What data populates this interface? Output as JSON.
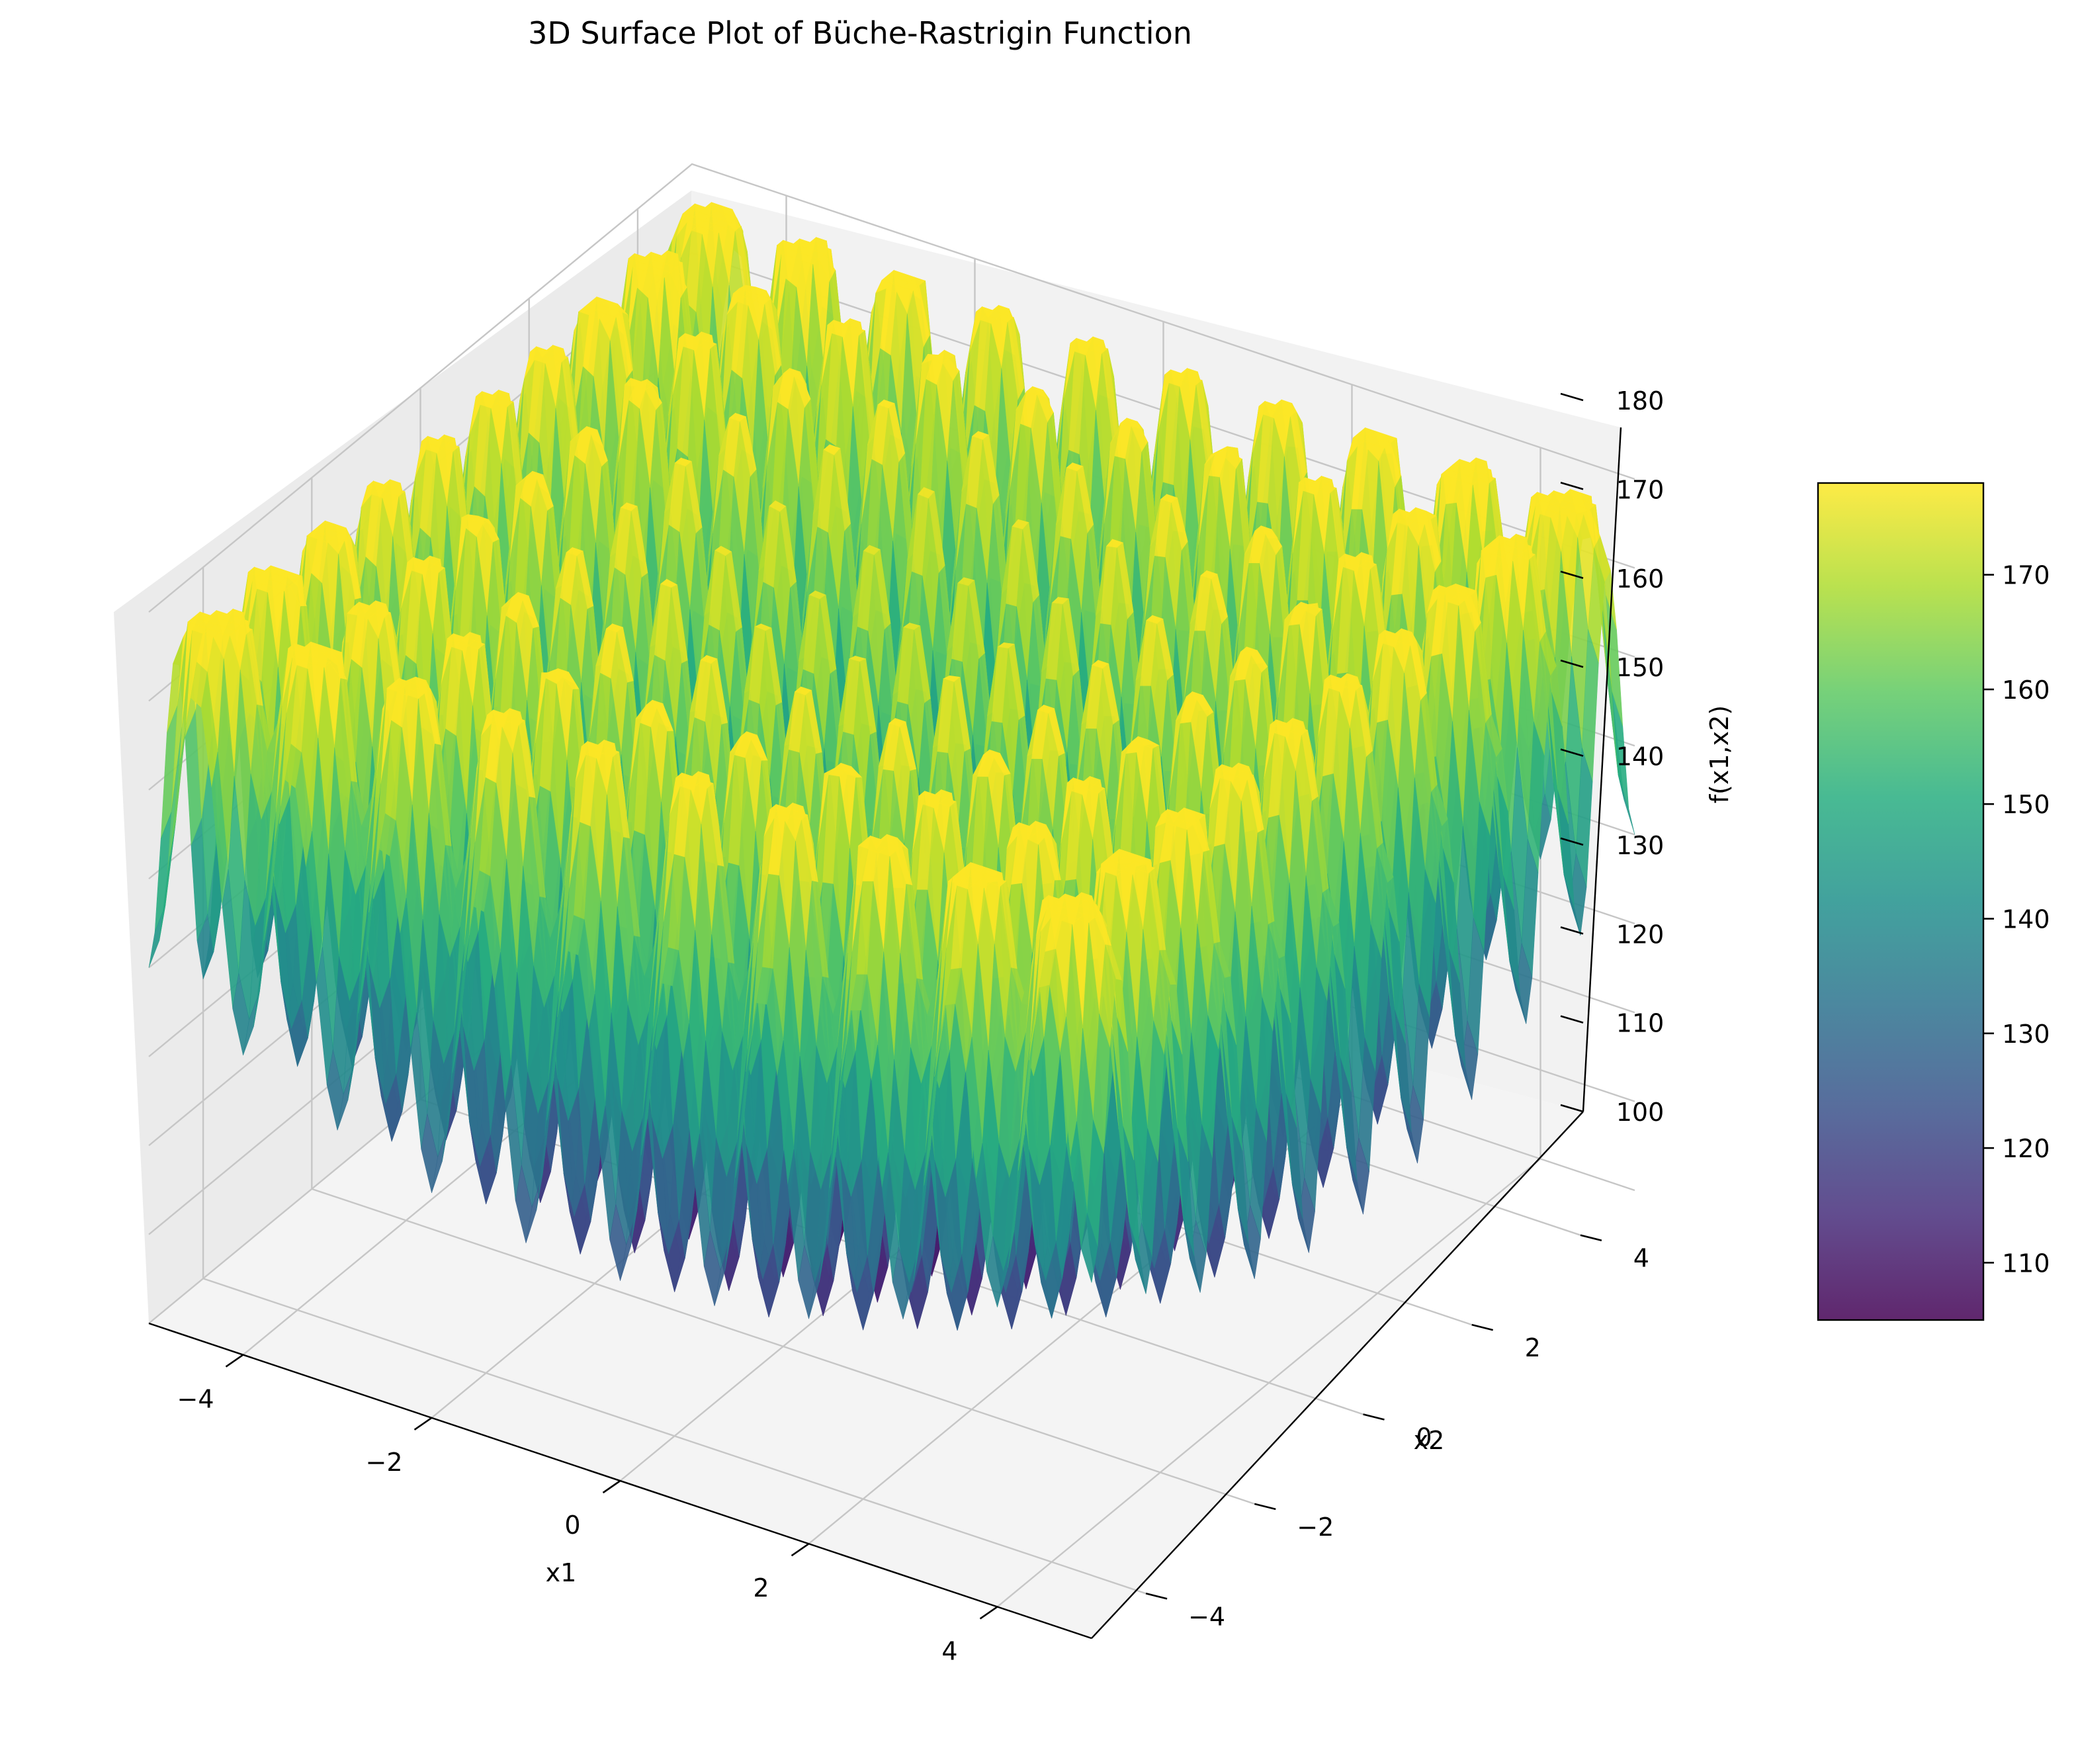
{
  "chart_data": {
    "type": "surface3d",
    "title": "3D Surface Plot of Büche-Rastrigin Function",
    "xlabel": "x1",
    "ylabel": "x2",
    "zlabel": "f(x1,x2)",
    "xlim": [
      -5,
      5
    ],
    "ylim": [
      -5,
      5
    ],
    "zlim": [
      100,
      180
    ],
    "x_ticks": [
      "−4",
      "−2",
      "0",
      "2",
      "4"
    ],
    "y_ticks": [
      "−4",
      "−2",
      "0",
      "2",
      "4"
    ],
    "z_ticks": [
      "100",
      "110",
      "120",
      "130",
      "140",
      "150",
      "160",
      "170",
      "180"
    ],
    "colormap": "viridis",
    "colorbar": {
      "ticks": [
        "110",
        "120",
        "130",
        "140",
        "150",
        "160",
        "170"
      ],
      "range": [
        105,
        178
      ]
    },
    "surface": {
      "function": "Büche-Rastrigin",
      "z_min": 105,
      "z_max": 178,
      "corner_peaks": [
        {
          "x1": -5,
          "x2": 5,
          "z": 178
        },
        {
          "x1": -5,
          "x2": -5,
          "z": 174
        },
        {
          "x1": 5,
          "x2": 5,
          "z": 176
        },
        {
          "x1": 5,
          "x2": -5,
          "z": 175
        }
      ]
    },
    "grid": true
  }
}
